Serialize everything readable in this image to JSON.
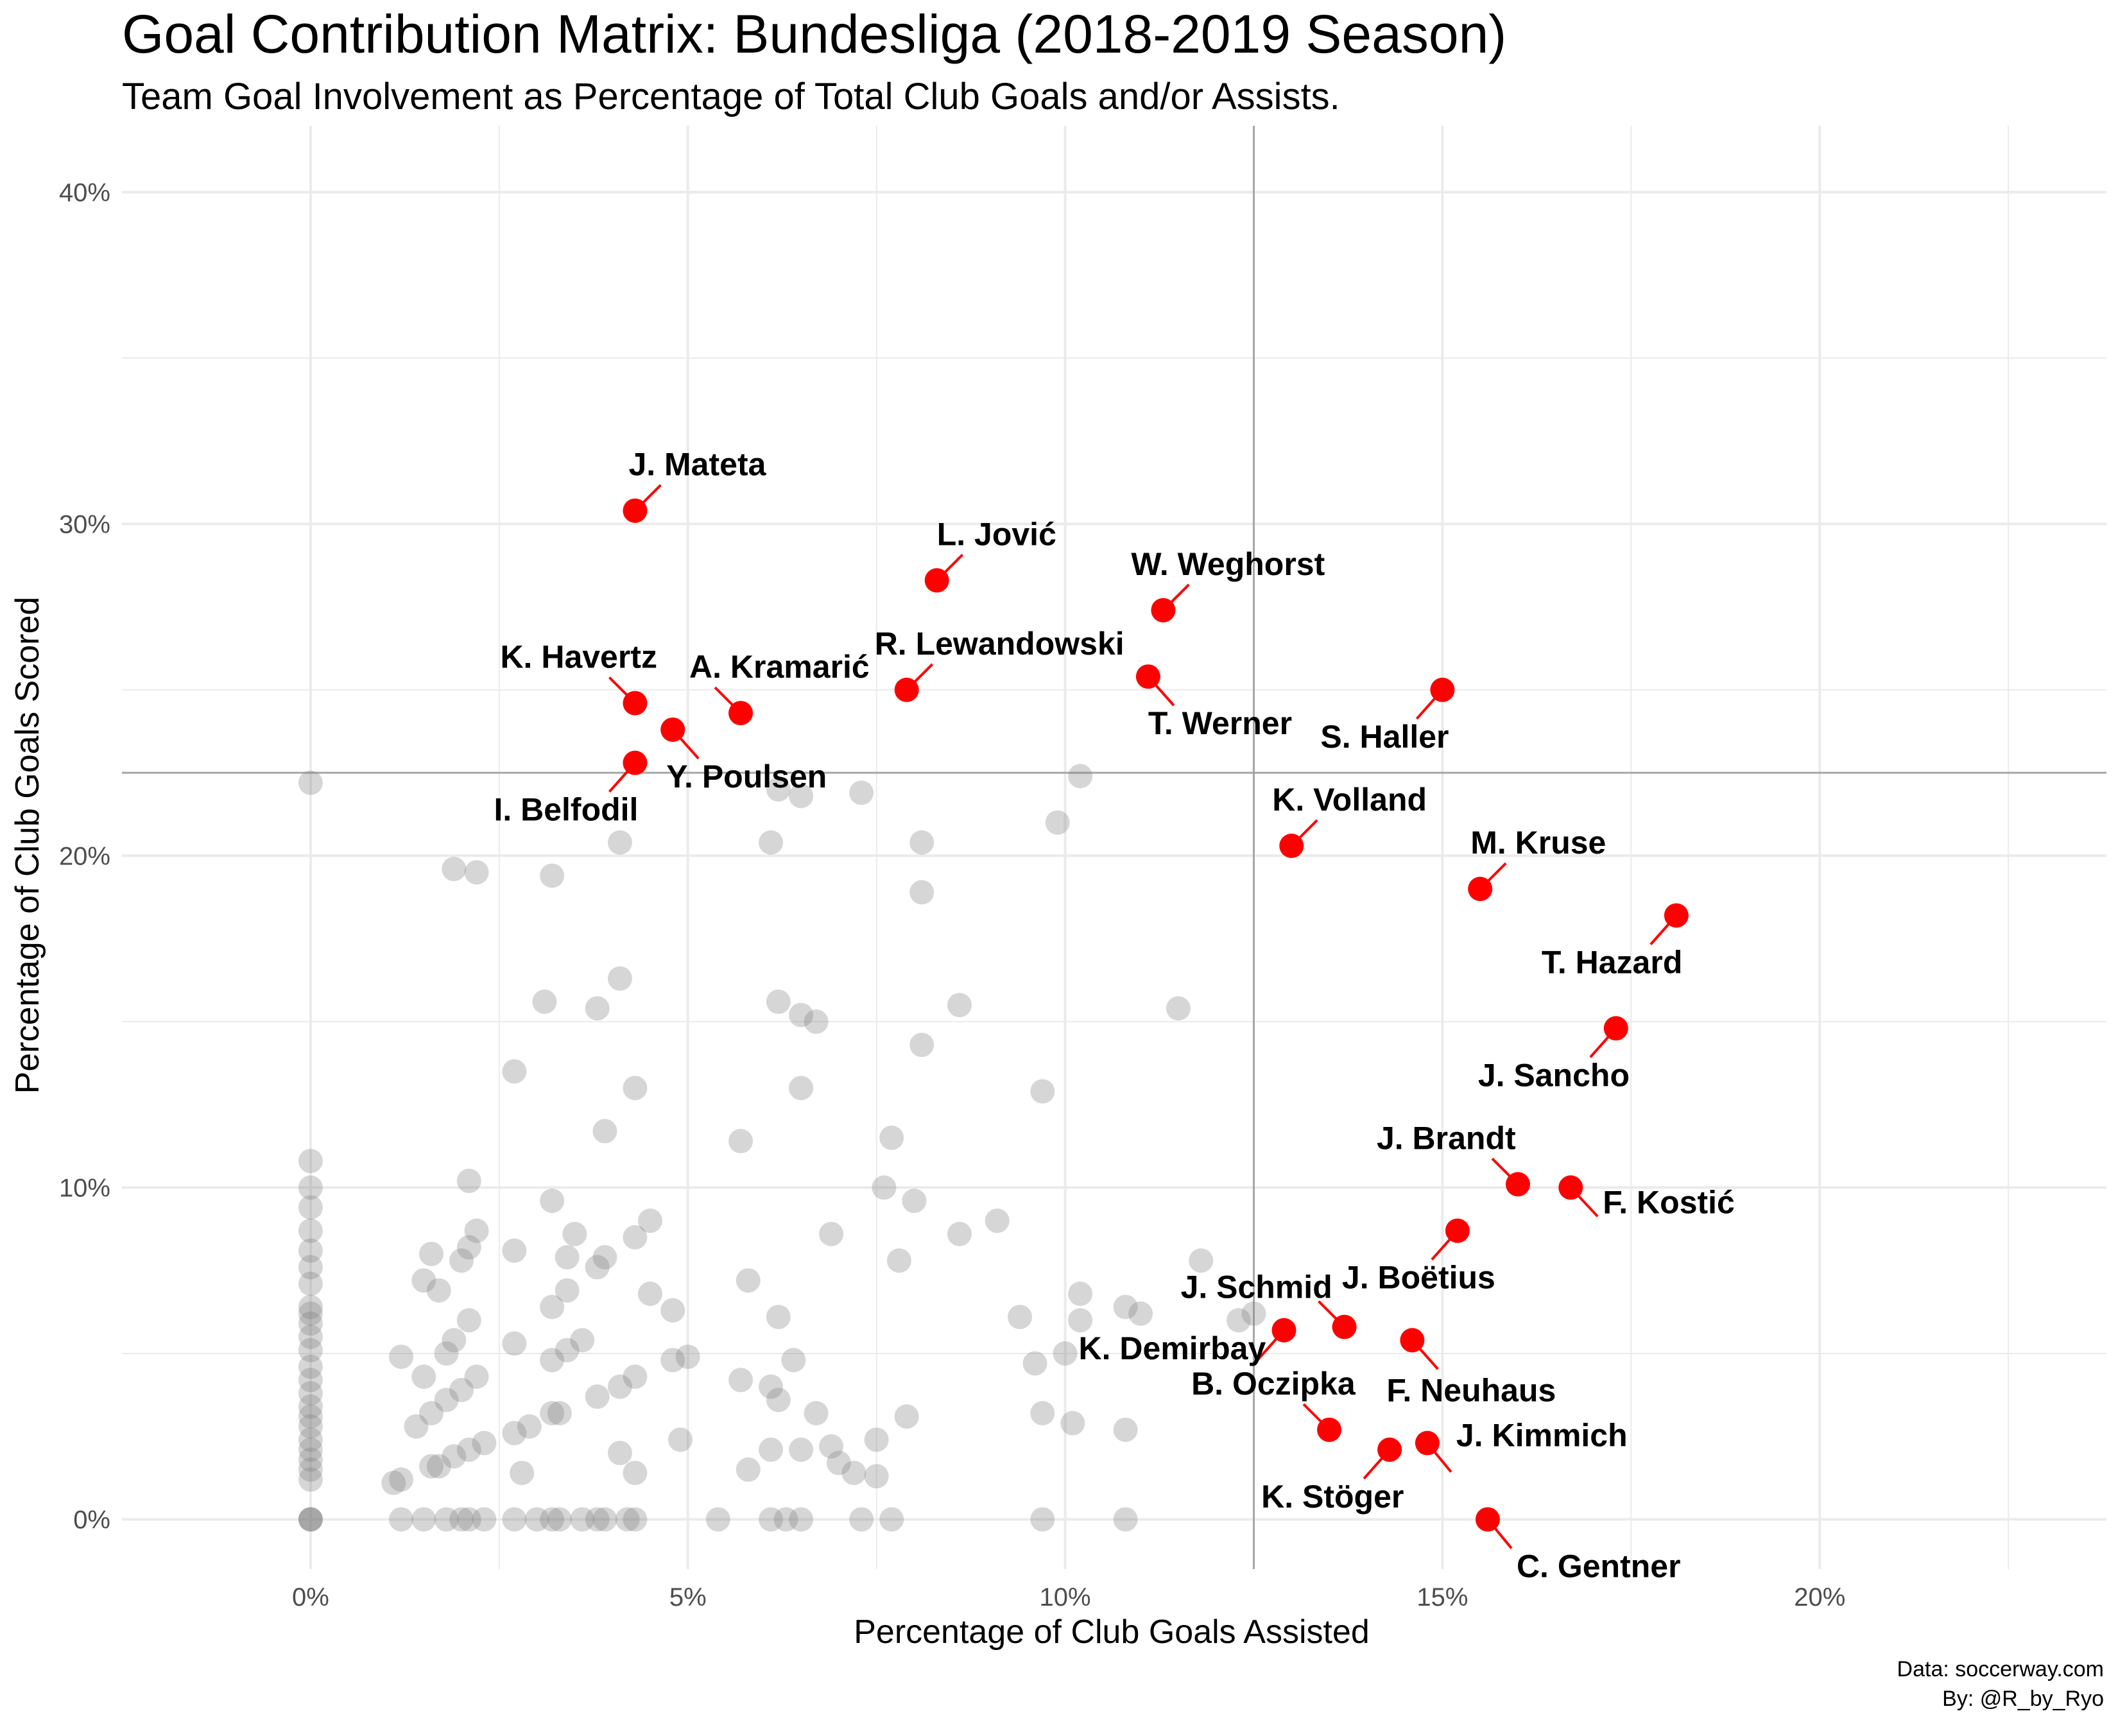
{
  "chart_data": {
    "type": "scatter",
    "title": "Goal Contribution Matrix: Bundesliga (2018-2019 Season)",
    "subtitle": "Team Goal Involvement as Percentage of Total Club Goals and/or Assists.",
    "xlabel": "Percentage of Club Goals Assisted",
    "ylabel": "Percentage of Club Goals Scored",
    "caption_lines": [
      "Data: soccerway.com",
      "By: @R_by_Ryo"
    ],
    "xlim": [
      -2.5,
      23.8
    ],
    "ylim": [
      -1.5,
      42
    ],
    "x_ticks": [
      0,
      5,
      10,
      15,
      20
    ],
    "x_tick_labels": [
      "0%",
      "5%",
      "10%",
      "15%",
      "20%"
    ],
    "y_ticks": [
      0,
      10,
      20,
      30,
      40
    ],
    "y_tick_labels": [
      "0%",
      "10%",
      "20%",
      "30%",
      "40%"
    ],
    "reference_lines": {
      "x": 12.5,
      "y": 22.5
    },
    "grid": true,
    "colors": {
      "highlight": "#ff0000",
      "other": "#808080",
      "reference_line": "#a6a6a6",
      "grid": "#ebebeb"
    },
    "highlighted": [
      {
        "label": "J. Mateta",
        "x": 4.3,
        "y": 30.4
      },
      {
        "label": "L. Jović",
        "x": 8.3,
        "y": 28.3
      },
      {
        "label": "W. Weghorst",
        "x": 11.3,
        "y": 27.4
      },
      {
        "label": "K. Havertz",
        "x": 4.3,
        "y": 24.6
      },
      {
        "label": "A. Kramarić",
        "x": 5.7,
        "y": 24.3
      },
      {
        "label": "R. Lewandowski",
        "x": 7.9,
        "y": 25.0
      },
      {
        "label": "T. Werner",
        "x": 11.1,
        "y": 25.4
      },
      {
        "label": "S. Haller",
        "x": 15.0,
        "y": 25.0
      },
      {
        "label": "Y. Poulsen",
        "x": 4.8,
        "y": 23.8
      },
      {
        "label": "I. Belfodil",
        "x": 4.3,
        "y": 22.8
      },
      {
        "label": "K. Volland",
        "x": 13.0,
        "y": 20.3
      },
      {
        "label": "M. Kruse",
        "x": 15.5,
        "y": 19.0
      },
      {
        "label": "T. Hazard",
        "x": 18.1,
        "y": 18.2
      },
      {
        "label": "J. Sancho",
        "x": 17.3,
        "y": 14.8
      },
      {
        "label": "J. Brandt",
        "x": 16.0,
        "y": 10.1
      },
      {
        "label": "F. Kostić",
        "x": 16.7,
        "y": 10.0
      },
      {
        "label": "J. Boëtius",
        "x": 15.2,
        "y": 8.7
      },
      {
        "label": "J. Schmid",
        "x": 13.7,
        "y": 5.8
      },
      {
        "label": "K. Demirbay",
        "x": 12.9,
        "y": 5.7
      },
      {
        "label": "F. Neuhaus",
        "x": 14.6,
        "y": 5.4
      },
      {
        "label": "B. Oczipka",
        "x": 13.5,
        "y": 2.7
      },
      {
        "label": "J. Kimmich",
        "x": 14.8,
        "y": 2.3
      },
      {
        "label": "K. Stöger",
        "x": 14.3,
        "y": 2.1
      },
      {
        "label": "C. Gentner",
        "x": 15.6,
        "y": 0.0
      }
    ],
    "others": [
      [
        0,
        22.2
      ],
      [
        0,
        10.8
      ],
      [
        0,
        10.0
      ],
      [
        0,
        9.4
      ],
      [
        0,
        8.7
      ],
      [
        0,
        8.1
      ],
      [
        0,
        7.6
      ],
      [
        0,
        7.1
      ],
      [
        0,
        6.4
      ],
      [
        0,
        6.2
      ],
      [
        0,
        5.9
      ],
      [
        0,
        5.5
      ],
      [
        0,
        5.1
      ],
      [
        0,
        4.6
      ],
      [
        0,
        4.2
      ],
      [
        0,
        3.8
      ],
      [
        0,
        3.4
      ],
      [
        0,
        3.1
      ],
      [
        0,
        2.8
      ],
      [
        0,
        2.4
      ],
      [
        0,
        2.1
      ],
      [
        0,
        1.8
      ],
      [
        0,
        1.5
      ],
      [
        0,
        1.2
      ],
      [
        0,
        0
      ],
      [
        0,
        0
      ],
      [
        0,
        0
      ],
      [
        1.2,
        0
      ],
      [
        1.5,
        0
      ],
      [
        1.8,
        0
      ],
      [
        2.0,
        0
      ],
      [
        2.1,
        0
      ],
      [
        2.3,
        0
      ],
      [
        2.7,
        0
      ],
      [
        3.0,
        0
      ],
      [
        3.2,
        0
      ],
      [
        3.3,
        0
      ],
      [
        3.6,
        0
      ],
      [
        3.8,
        0
      ],
      [
        3.9,
        0
      ],
      [
        4.2,
        0
      ],
      [
        4.3,
        0
      ],
      [
        5.4,
        0
      ],
      [
        6.1,
        0
      ],
      [
        6.3,
        0
      ],
      [
        6.5,
        0
      ],
      [
        7.3,
        0
      ],
      [
        7.7,
        0
      ],
      [
        9.7,
        0
      ],
      [
        10.8,
        0
      ],
      [
        1.1,
        1.1
      ],
      [
        1.2,
        1.2
      ],
      [
        1.6,
        1.6
      ],
      [
        1.7,
        1.6
      ],
      [
        1.9,
        1.9
      ],
      [
        2.1,
        2.1
      ],
      [
        2.3,
        2.3
      ],
      [
        2.8,
        1.4
      ],
      [
        3.2,
        3.2
      ],
      [
        3.3,
        3.2
      ],
      [
        4.1,
        2.0
      ],
      [
        4.3,
        1.4
      ],
      [
        4.9,
        2.4
      ],
      [
        1.4,
        2.8
      ],
      [
        1.6,
        3.2
      ],
      [
        1.8,
        3.6
      ],
      [
        2.0,
        3.9
      ],
      [
        2.2,
        4.3
      ],
      [
        1.5,
        4.3
      ],
      [
        1.2,
        4.9
      ],
      [
        1.8,
        5.0
      ],
      [
        1.9,
        5.4
      ],
      [
        2.1,
        6.0
      ],
      [
        1.7,
        6.9
      ],
      [
        1.5,
        7.2
      ],
      [
        1.6,
        8.0
      ],
      [
        2.0,
        7.8
      ],
      [
        2.1,
        8.2
      ],
      [
        2.2,
        8.7
      ],
      [
        2.1,
        10.2
      ],
      [
        2.7,
        8.1
      ],
      [
        2.7,
        5.3
      ],
      [
        2.7,
        2.6
      ],
      [
        2.9,
        2.8
      ],
      [
        3.2,
        4.8
      ],
      [
        3.4,
        5.1
      ],
      [
        3.6,
        5.4
      ],
      [
        3.2,
        6.4
      ],
      [
        3.4,
        6.9
      ],
      [
        3.4,
        7.9
      ],
      [
        3.5,
        8.6
      ],
      [
        3.2,
        9.6
      ],
      [
        3.8,
        7.6
      ],
      [
        3.9,
        7.9
      ],
      [
        3.8,
        3.7
      ],
      [
        4.1,
        4.0
      ],
      [
        4.3,
        4.3
      ],
      [
        4.3,
        8.5
      ],
      [
        4.5,
        9.0
      ],
      [
        4.5,
        6.8
      ],
      [
        4.8,
        6.3
      ],
      [
        4.8,
        4.8
      ],
      [
        5.0,
        4.9
      ],
      [
        3.9,
        11.7
      ],
      [
        4.3,
        13.0
      ],
      [
        2.7,
        13.5
      ],
      [
        3.1,
        15.6
      ],
      [
        3.8,
        15.4
      ],
      [
        4.1,
        16.3
      ],
      [
        1.9,
        19.6
      ],
      [
        2.2,
        19.5
      ],
      [
        3.2,
        19.4
      ],
      [
        4.1,
        20.4
      ],
      [
        5.7,
        11.4
      ],
      [
        5.8,
        7.2
      ],
      [
        5.7,
        4.2
      ],
      [
        5.8,
        1.5
      ],
      [
        6.1,
        20.4
      ],
      [
        6.2,
        22.0
      ],
      [
        6.5,
        21.8
      ],
      [
        7.3,
        21.9
      ],
      [
        6.2,
        15.6
      ],
      [
        6.5,
        15.2
      ],
      [
        6.7,
        15.0
      ],
      [
        6.5,
        13.0
      ],
      [
        6.9,
        8.6
      ],
      [
        6.2,
        6.1
      ],
      [
        6.4,
        4.8
      ],
      [
        6.1,
        4.0
      ],
      [
        6.2,
        3.6
      ],
      [
        6.7,
        3.2
      ],
      [
        6.1,
        2.1
      ],
      [
        6.5,
        2.1
      ],
      [
        6.9,
        2.2
      ],
      [
        7.0,
        1.7
      ],
      [
        7.2,
        1.4
      ],
      [
        7.5,
        1.3
      ],
      [
        7.5,
        2.4
      ],
      [
        7.6,
        10.0
      ],
      [
        7.7,
        11.5
      ],
      [
        7.8,
        7.8
      ],
      [
        8.0,
        9.6
      ],
      [
        7.9,
        3.1
      ],
      [
        8.1,
        20.4
      ],
      [
        8.1,
        18.9
      ],
      [
        8.1,
        14.3
      ],
      [
        8.6,
        15.5
      ],
      [
        8.6,
        8.6
      ],
      [
        9.1,
        9.0
      ],
      [
        9.4,
        6.1
      ],
      [
        9.6,
        4.7
      ],
      [
        9.7,
        12.9
      ],
      [
        9.9,
        21.0
      ],
      [
        10.2,
        22.4
      ],
      [
        10.2,
        6.8
      ],
      [
        10.2,
        6.0
      ],
      [
        10.0,
        5.0
      ],
      [
        10.1,
        2.9
      ],
      [
        9.7,
        3.2
      ],
      [
        10.8,
        6.4
      ],
      [
        11.0,
        6.2
      ],
      [
        10.8,
        2.7
      ],
      [
        11.5,
        15.4
      ],
      [
        11.8,
        7.8
      ],
      [
        12.3,
        6.0
      ],
      [
        12.5,
        6.2
      ]
    ]
  }
}
